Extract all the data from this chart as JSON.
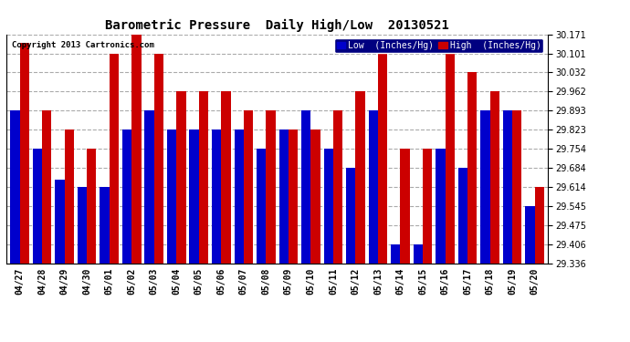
{
  "title": "Barometric Pressure  Daily High/Low  20130521",
  "copyright": "Copyright 2013 Cartronics.com",
  "legend_low": "Low  (Inches/Hg)",
  "legend_high": "High  (Inches/Hg)",
  "dates": [
    "04/27",
    "04/28",
    "04/29",
    "04/30",
    "05/01",
    "05/02",
    "05/03",
    "05/04",
    "05/05",
    "05/06",
    "05/07",
    "05/08",
    "05/09",
    "05/10",
    "05/11",
    "05/12",
    "05/13",
    "05/14",
    "05/15",
    "05/16",
    "05/17",
    "05/18",
    "05/19",
    "05/20"
  ],
  "low_values": [
    29.893,
    29.754,
    29.64,
    29.615,
    29.615,
    29.823,
    29.893,
    29.823,
    29.823,
    29.823,
    29.823,
    29.754,
    29.823,
    29.893,
    29.754,
    29.684,
    29.893,
    29.406,
    29.406,
    29.754,
    29.684,
    29.893,
    29.893,
    29.545
  ],
  "high_values": [
    30.14,
    29.893,
    29.823,
    29.754,
    30.101,
    30.171,
    30.101,
    29.962,
    29.962,
    29.962,
    29.893,
    29.893,
    29.823,
    29.823,
    29.893,
    29.962,
    30.101,
    29.754,
    29.754,
    30.101,
    30.032,
    29.962,
    29.893,
    29.614
  ],
  "low_color": "#0000cc",
  "high_color": "#cc0000",
  "bg_color": "#ffffff",
  "plot_bg_color": "#ffffff",
  "grid_color": "#888888",
  "ylim_min": 29.336,
  "ylim_max": 30.171,
  "yticks": [
    29.336,
    29.406,
    29.475,
    29.545,
    29.614,
    29.684,
    29.754,
    29.823,
    29.893,
    29.962,
    30.032,
    30.101,
    30.171
  ]
}
